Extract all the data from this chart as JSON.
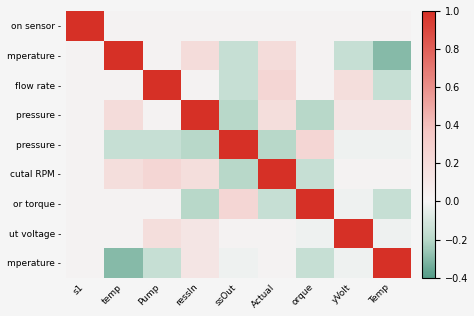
{
  "row_labels": [
    "on sensor -",
    "mperature -",
    "flow rate -",
    "pressure -",
    "pressure -",
    "cutal RPM -",
    "or torque -",
    "ut voltage -",
    "mperature -"
  ],
  "col_labels": [
    "s1",
    "temp",
    "Pump",
    "ressIn",
    "ssOut",
    "Actual",
    "orque",
    "yVolt",
    "Temp"
  ],
  "corr_matrix": [
    [
      1.0,
      0.02,
      0.02,
      0.02,
      0.02,
      0.02,
      0.02,
      0.02,
      0.02
    ],
    [
      0.02,
      1.0,
      0.02,
      0.2,
      -0.15,
      0.2,
      0.02,
      -0.15,
      -0.3
    ],
    [
      0.02,
      0.02,
      1.0,
      0.02,
      -0.15,
      0.25,
      0.02,
      0.18,
      -0.15
    ],
    [
      0.02,
      0.2,
      0.02,
      1.0,
      -0.2,
      0.18,
      -0.2,
      0.12,
      0.12
    ],
    [
      0.02,
      -0.15,
      -0.15,
      -0.2,
      1.0,
      -0.2,
      0.25,
      -0.02,
      -0.02
    ],
    [
      0.02,
      0.18,
      0.25,
      0.18,
      -0.2,
      1.0,
      -0.15,
      0.02,
      0.02
    ],
    [
      0.02,
      0.02,
      0.02,
      -0.2,
      0.25,
      -0.15,
      1.0,
      -0.02,
      -0.15
    ],
    [
      0.02,
      0.02,
      0.18,
      0.12,
      0.02,
      0.02,
      -0.02,
      1.0,
      -0.02
    ],
    [
      0.02,
      -0.3,
      -0.15,
      0.12,
      -0.02,
      0.02,
      -0.15,
      -0.02,
      1.0
    ]
  ],
  "vmin": -0.4,
  "vmax": 1.0,
  "figsize": [
    4.74,
    3.16
  ],
  "dpi": 100,
  "bg_color": "#f5f5f5",
  "colorbar_ticks": [
    -0.4,
    -0.2,
    0.0,
    0.2,
    0.4,
    0.6,
    0.8,
    1.0
  ]
}
